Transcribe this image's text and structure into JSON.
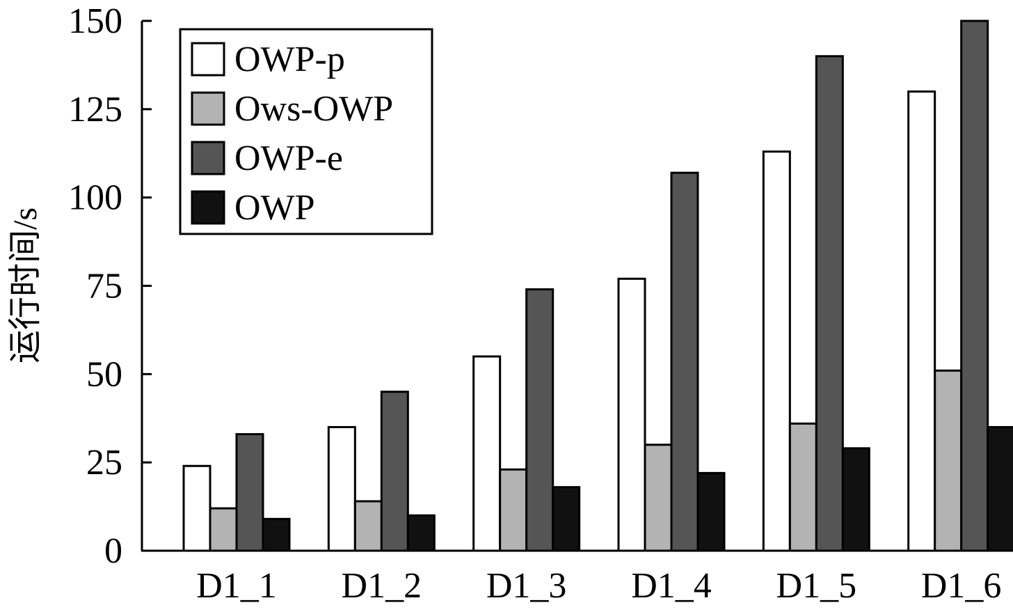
{
  "chart_data": {
    "type": "bar",
    "title": "",
    "xlabel": "",
    "ylabel": "运行时间/s",
    "categories": [
      "D1_1",
      "D1_2",
      "D1_3",
      "D1_4",
      "D1_5",
      "D1_6"
    ],
    "series": [
      {
        "name": "OWP-p",
        "values": [
          24,
          35,
          55,
          77,
          113,
          130
        ],
        "color": "#ffffff"
      },
      {
        "name": "Ows-OWP",
        "values": [
          12,
          14,
          23,
          30,
          36,
          51
        ],
        "color": "#b3b3b3"
      },
      {
        "name": "OWP-e",
        "values": [
          33,
          45,
          74,
          107,
          140,
          150
        ],
        "color": "#555555"
      },
      {
        "name": "OWP",
        "values": [
          9,
          10,
          18,
          22,
          29,
          35
        ],
        "color": "#111111"
      }
    ],
    "ylim": [
      0,
      150
    ],
    "yticks": [
      0,
      25,
      50,
      75,
      100,
      125,
      150
    ],
    "grid": false,
    "legend_position": "top-left"
  }
}
